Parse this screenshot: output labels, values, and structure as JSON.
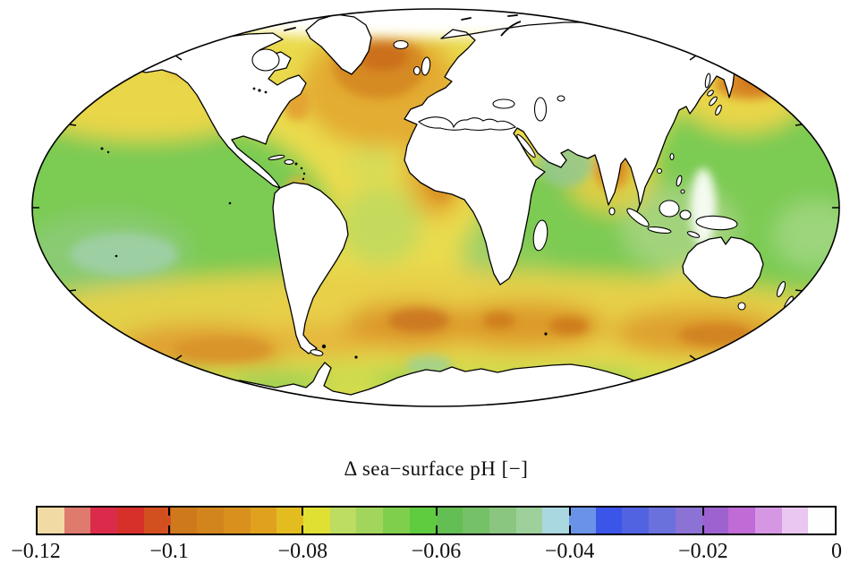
{
  "figure": {
    "title": "Δ sea−surface pH [−]"
  },
  "colorbar": {
    "min": -0.12,
    "max": 0,
    "tick_labels": [
      "−0.12",
      "−0.1",
      "−0.08",
      "−0.06",
      "−0.04",
      "−0.02",
      "0"
    ],
    "segment_colors": [
      "#F2DAA5",
      "#DF7A6F",
      "#DB2B4B",
      "#D7302A",
      "#D25020",
      "#CE7A1C",
      "#D3851D",
      "#DA901D",
      "#E0A21E",
      "#E3BC20",
      "#E0E034",
      "#BCDC62",
      "#A2D55B",
      "#7FCF4D",
      "#5FCB3F",
      "#63BE53",
      "#75C167",
      "#8AC680",
      "#9DD09A",
      "#A9D8E0",
      "#6A93E8",
      "#3C55E9",
      "#5163E0",
      "#6A70DC",
      "#8B72D4",
      "#9D62CF",
      "#C06BD6",
      "#D597E3",
      "#E9C7F0",
      "#FEFEFE"
    ]
  },
  "map": {
    "projection": "mollweide-ellipse",
    "land_color": "#ffffff",
    "coast_color": "#000000",
    "ocean_base_color": "#EADB4D"
  },
  "chart_data": {
    "type": "heatmap",
    "title": "Δ sea−surface pH [−]",
    "colorbar_range": [
      -0.12,
      0
    ],
    "colorbar_ticks": [
      -0.12,
      -0.1,
      -0.08,
      -0.06,
      -0.04,
      -0.02,
      0
    ],
    "legend_position": "bottom",
    "regions": [
      {
        "name": "Subpolar North Atlantic (Iceland basin)",
        "approx_delta_ph": -0.1
      },
      {
        "name": "North Atlantic off NW Europe / Iberia",
        "approx_delta_ph": -0.09
      },
      {
        "name": "US east coast patch",
        "approx_delta_ph": -0.085
      },
      {
        "name": "Tropical / equatorial Atlantic",
        "approx_delta_ph": -0.075
      },
      {
        "name": "Northeast Pacific (Gulf of Alaska)",
        "approx_delta_ph": -0.08
      },
      {
        "name": "Central North Pacific",
        "approx_delta_ph": -0.068
      },
      {
        "name": "Eastern South Pacific gyre (pale patch)",
        "approx_delta_ph": -0.055
      },
      {
        "name": "Western Pacific",
        "approx_delta_ph": -0.062
      },
      {
        "name": "NW Pacific off Kamchatka (orange patch)",
        "approx_delta_ph": -0.09
      },
      {
        "name": "Indian Ocean",
        "approx_delta_ph": -0.062
      },
      {
        "name": "Arabian Sea",
        "approx_delta_ph": -0.058
      },
      {
        "name": "Bay of Bengal (orange patch)",
        "approx_delta_ph": -0.09
      },
      {
        "name": "Southern mid-latitude band (40-55S)",
        "approx_delta_ph": -0.085
      },
      {
        "name": "South Atlantic / Argentine basin core",
        "approx_delta_ph": -0.098
      },
      {
        "name": "Antarctic coastal zone",
        "approx_delta_ph": -0.063
      }
    ]
  }
}
